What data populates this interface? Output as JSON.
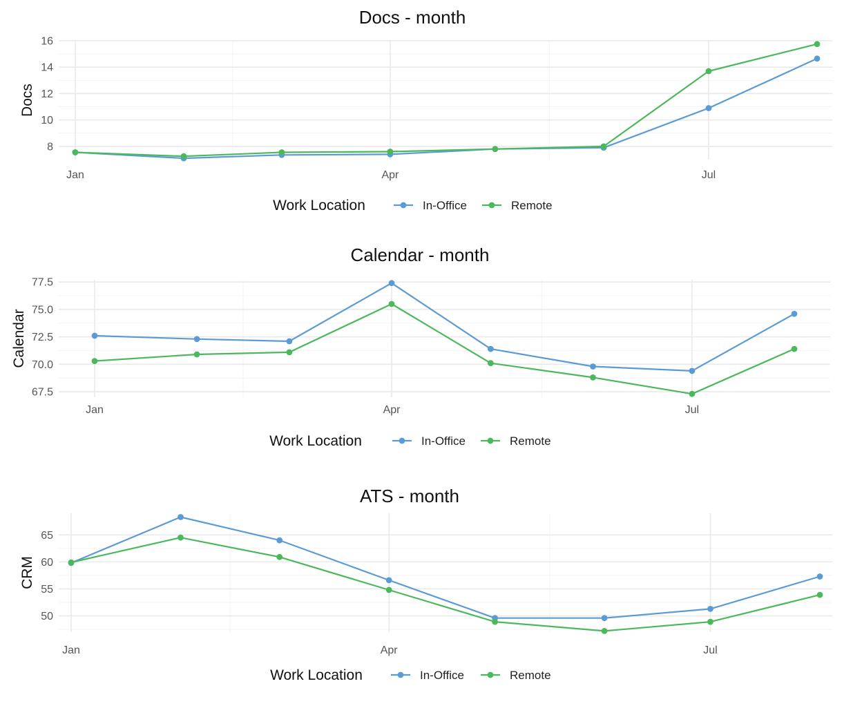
{
  "colors": {
    "In-Office": "#5B9BD5",
    "Remote": "#4CB85C"
  },
  "chart_data": [
    {
      "type": "line",
      "title": "Docs - month",
      "ylabel": "Docs",
      "xlabel": "",
      "x": [
        "2023-01-01",
        "2023-02-01",
        "2023-03-01",
        "2023-04-01",
        "2023-05-01",
        "2023-06-01",
        "2023-07-01",
        "2023-08-01"
      ],
      "x_ticks": [
        {
          "date": "2023-01-01",
          "label": "Jan"
        },
        {
          "date": "2023-04-01",
          "label": "Apr"
        },
        {
          "date": "2023-07-01",
          "label": "Jul"
        }
      ],
      "ylim": [
        7.0,
        16.0
      ],
      "y_ticks": [
        8,
        10,
        12,
        14,
        16
      ],
      "y_tick_labels": [
        "8",
        "10",
        "12",
        "14",
        "16"
      ],
      "grid": true,
      "legend": {
        "title": "Work Location",
        "position": "bottom",
        "entries": [
          "In-Office",
          "Remote"
        ]
      },
      "series": [
        {
          "name": "In-Office",
          "values": [
            7.55,
            7.1,
            7.35,
            7.4,
            7.8,
            7.9,
            10.9,
            14.65
          ]
        },
        {
          "name": "Remote",
          "values": [
            7.55,
            7.25,
            7.55,
            7.6,
            7.8,
            8.0,
            13.7,
            15.75
          ]
        }
      ]
    },
    {
      "type": "line",
      "title": "Calendar - month",
      "ylabel": "Calendar",
      "xlabel": "",
      "x": [
        "2023-01-01",
        "2023-02-01",
        "2023-03-01",
        "2023-04-01",
        "2023-05-01",
        "2023-06-01",
        "2023-07-01",
        "2023-08-01"
      ],
      "x_ticks": [
        {
          "date": "2023-01-01",
          "label": "Jan"
        },
        {
          "date": "2023-04-01",
          "label": "Apr"
        },
        {
          "date": "2023-07-01",
          "label": "Jul"
        }
      ],
      "ylim": [
        67.0,
        77.7
      ],
      "y_ticks": [
        67.5,
        70.0,
        72.5,
        75.0,
        77.5
      ],
      "y_tick_labels": [
        "67.5",
        "70.0",
        "72.5",
        "75.0",
        "77.5"
      ],
      "grid": true,
      "legend": {
        "title": "Work Location",
        "position": "bottom",
        "entries": [
          "In-Office",
          "Remote"
        ]
      },
      "series": [
        {
          "name": "In-Office",
          "values": [
            72.6,
            72.3,
            72.1,
            77.4,
            71.4,
            69.8,
            69.4,
            74.6
          ]
        },
        {
          "name": "Remote",
          "values": [
            70.3,
            70.9,
            71.1,
            75.5,
            70.1,
            68.8,
            67.3,
            71.4
          ]
        }
      ]
    },
    {
      "type": "line",
      "title": "ATS - month",
      "ylabel": "CRM",
      "xlabel": "",
      "x": [
        "2023-01-01",
        "2023-02-01",
        "2023-03-01",
        "2023-04-01",
        "2023-05-01",
        "2023-06-01",
        "2023-07-01",
        "2023-08-01"
      ],
      "x_ticks": [
        {
          "date": "2023-01-01",
          "label": "Jan"
        },
        {
          "date": "2023-04-01",
          "label": "Apr"
        },
        {
          "date": "2023-07-01",
          "label": "Jul"
        }
      ],
      "ylim": [
        47.0,
        69.0
      ],
      "y_ticks": [
        50,
        55,
        60,
        65
      ],
      "y_tick_labels": [
        "50",
        "55",
        "60",
        "65"
      ],
      "grid": true,
      "legend": {
        "title": "Work Location",
        "position": "bottom",
        "entries": [
          "In-Office",
          "Remote"
        ]
      },
      "series": [
        {
          "name": "In-Office",
          "values": [
            59.8,
            68.3,
            64.0,
            56.6,
            49.6,
            49.6,
            51.3,
            57.3
          ]
        },
        {
          "name": "Remote",
          "values": [
            59.9,
            64.5,
            60.9,
            54.8,
            48.9,
            47.2,
            48.9,
            53.9
          ]
        }
      ]
    }
  ]
}
